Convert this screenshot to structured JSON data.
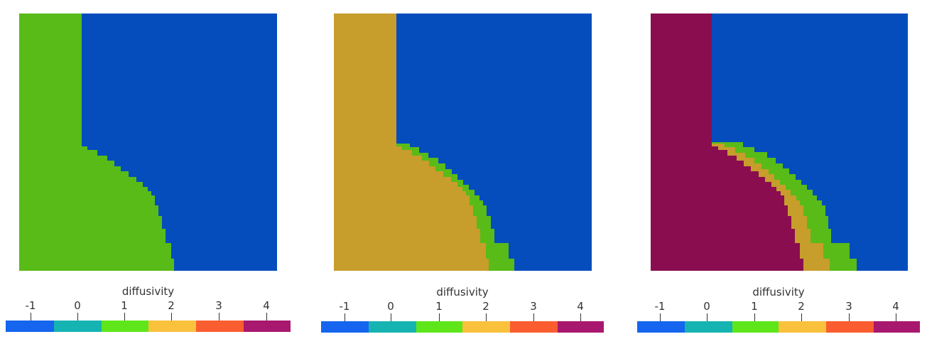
{
  "colorbar": {
    "title": "diffusivity",
    "tick_labels": [
      "-1",
      "0",
      "1",
      "2",
      "3",
      "4"
    ],
    "segment_colors": [
      "#1565ee",
      "#16b3b3",
      "#5fe61a",
      "#f9c13c",
      "#fa5d2f",
      "#a8186e"
    ]
  },
  "field_colors": {
    "background": "#054dbd",
    "region_1": "#58bb18",
    "region_2": "#c79d2b",
    "region_3": "#8a0d4f"
  },
  "panels": [
    {
      "name": "panel-1",
      "layers": [
        "region_1"
      ]
    },
    {
      "name": "panel-2",
      "layers": [
        "region_1",
        "region_2"
      ]
    },
    {
      "name": "panel-3",
      "layers": [
        "region_1",
        "region_2",
        "region_3"
      ]
    }
  ]
}
